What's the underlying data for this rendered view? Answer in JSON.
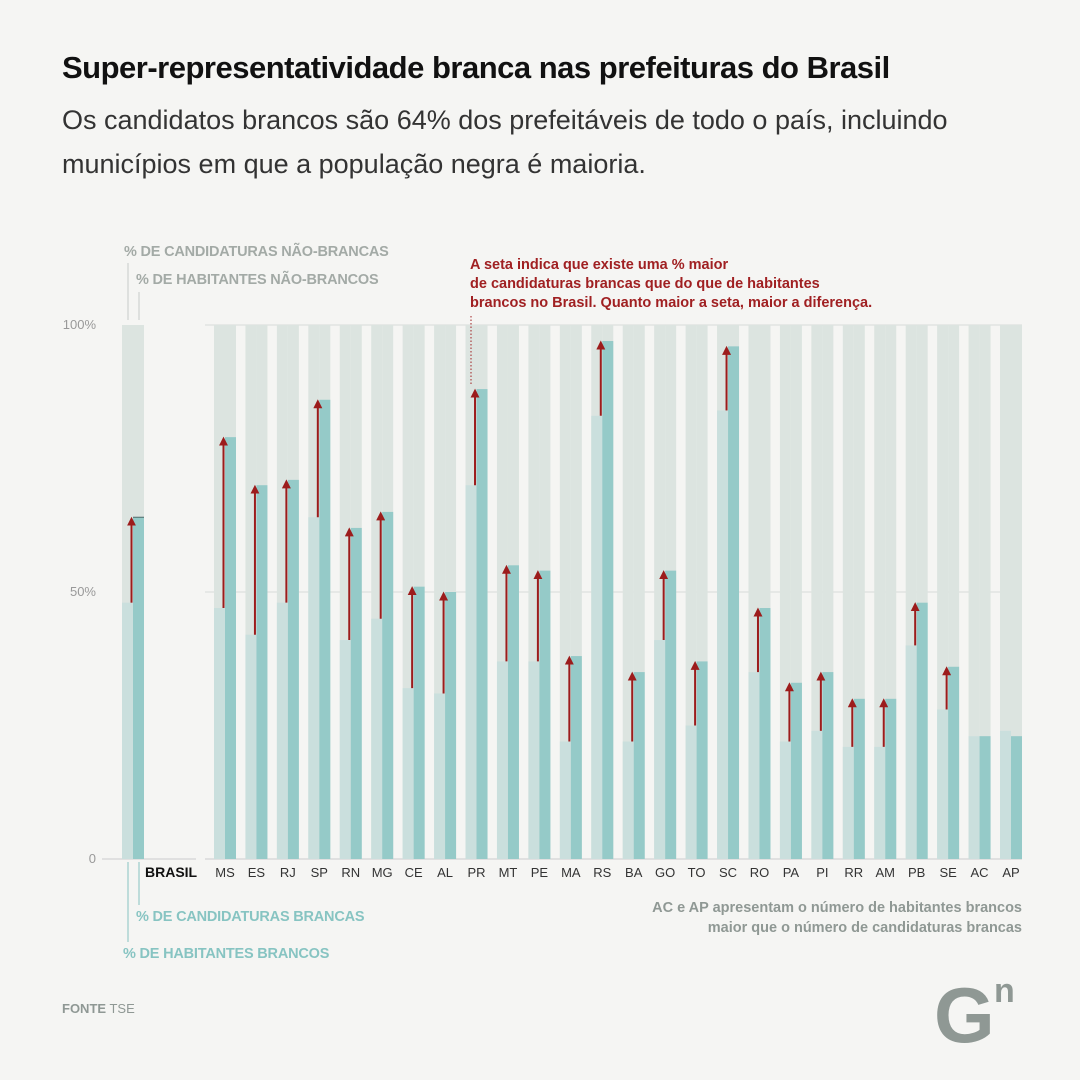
{
  "header": {
    "title": "Super-representatividade branca nas prefeituras do Brasil",
    "subtitle": "Os candidatos brancos são 64% dos prefeitáveis de todo o país, incluindo municípios em que a população negra é maioria."
  },
  "legend": {
    "top_candidates": "% DE CANDIDATURAS  NÃO-BRANCAS",
    "top_inhabitants": "% DE HABITANTES NÃO-BRANCOS",
    "bottom_candidates": "% DE CANDIDATURAS BRANCAS",
    "bottom_inhabitants": "% DE HABITANTES BRANCOS"
  },
  "annotation": "A seta indica que existe uma % maior de candidaturas brancas que do que de habitantes brancos no Brasil. Quanto maior a seta, maior a diferença.",
  "annotation_lines": [
    "A seta indica que existe uma % maior",
    "de candidaturas brancas que do que de habitantes",
    "brancos no Brasil. Quanto maior a seta, maior a diferença."
  ],
  "note_ac_ap_lines": [
    "AC e AP apresentam o número de habitantes brancos",
    "maior que o número de candidaturas brancas"
  ],
  "source": {
    "label": "FONTE",
    "value": "TSE"
  },
  "logo": {
    "text": "G",
    "superscript": "n"
  },
  "colors": {
    "habitantes_bar": "#cadfdd",
    "candidaturas_bar": "#95cac8",
    "remainder_bar": "#dce4e0",
    "arrow": "#9c1c1c",
    "gridline": "#d8dbd8",
    "axis_text": "#999999"
  },
  "chart_data": {
    "type": "bar",
    "ylim": [
      0,
      100
    ],
    "yticks": [
      0,
      50,
      100
    ],
    "ytick_labels": [
      "0",
      "50%",
      "100%"
    ],
    "categories": [
      "BRASIL",
      "MS",
      "ES",
      "RJ",
      "SP",
      "RN",
      "MG",
      "CE",
      "AL",
      "PR",
      "MT",
      "PE",
      "MA",
      "RS",
      "BA",
      "GO",
      "TO",
      "SC",
      "RO",
      "PA",
      "PI",
      "RR",
      "AM",
      "PB",
      "SE",
      "AC",
      "AP"
    ],
    "series": [
      {
        "name": "% DE HABITANTES BRANCOS",
        "values": [
          48,
          47,
          42,
          48,
          64,
          41,
          45,
          32,
          31,
          70,
          37,
          37,
          22,
          83,
          22,
          41,
          25,
          84,
          35,
          22,
          24,
          21,
          21,
          40,
          28,
          23,
          24
        ]
      },
      {
        "name": "% DE CANDIDATURAS BRANCAS",
        "values": [
          64,
          79,
          70,
          71,
          86,
          62,
          65,
          51,
          50,
          88,
          55,
          54,
          38,
          97,
          35,
          54,
          37,
          96,
          47,
          33,
          35,
          30,
          30,
          48,
          36,
          23,
          23
        ]
      }
    ]
  }
}
